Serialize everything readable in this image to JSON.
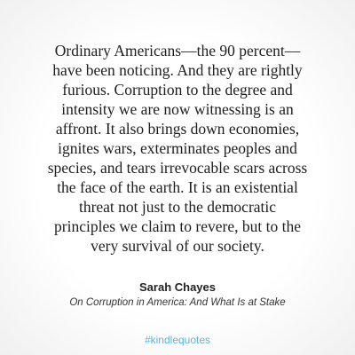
{
  "quote": {
    "lines": [
      "Ordinary Americans—the 90 percent—",
      "have been noticing. And they are rightly",
      "furious. Corruption to the degree and",
      "intensity we are now witnessing is an",
      "affront. It also brings down economies,",
      "ignites wars, exterminates peoples and",
      "species, and tears irrevocable scars across",
      "the face of the earth. It is an existential",
      "threat not just to the democratic",
      "principles we claim to revere, but to the",
      "very survival of our society."
    ]
  },
  "author": "Sarah Chayes",
  "book": "On Corruption in America: And What Is at Stake",
  "hashtag": "#kindlequotes"
}
